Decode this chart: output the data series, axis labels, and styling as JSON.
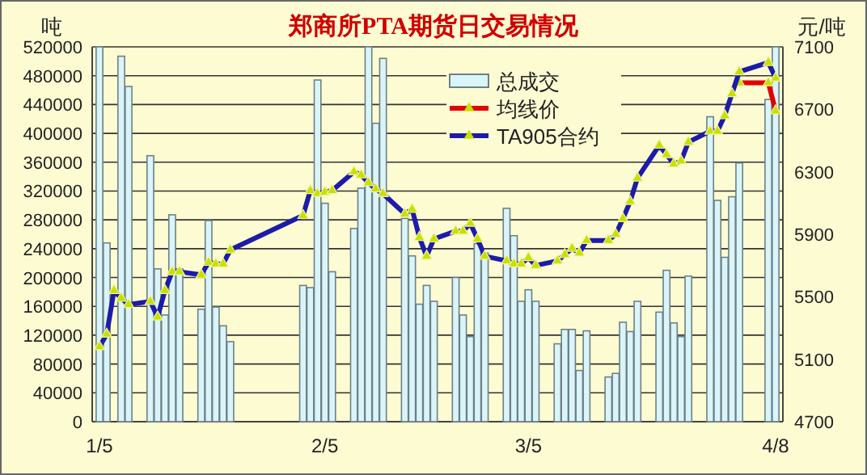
{
  "chart_data": {
    "type": "bar",
    "title": "郑商所PTA期货日交易情况",
    "ylabel": "吨",
    "y2label": "元/吨",
    "x": [
      "--01-05",
      "--01-06",
      "--01-07",
      "--01-08",
      "--01-09",
      "--01-12",
      "--01-13",
      "--01-14",
      "--01-15",
      "--01-16",
      "--01-19",
      "--01-20",
      "--01-21",
      "--01-22",
      "--01-23",
      "--02-02",
      "--02-03",
      "--02-04",
      "--02-05",
      "--02-06",
      "--02-09",
      "--02-10",
      "--02-11",
      "--02-12",
      "--02-13",
      "--02-16",
      "--02-17",
      "--02-18",
      "--02-19",
      "--02-20",
      "--02-23",
      "--02-24",
      "--02-25",
      "--02-26",
      "--02-27",
      "--03-02",
      "--03-03",
      "--03-04",
      "--03-05",
      "--03-06",
      "--03-09",
      "--03-10",
      "--03-11",
      "--03-12",
      "--03-13",
      "--03-16",
      "--03-17",
      "--03-18",
      "--03-19",
      "--03-20",
      "--03-23",
      "--03-24",
      "--03-25",
      "--03-26",
      "--03-27",
      "--03-30",
      "--03-31",
      "--04-01",
      "--04-02",
      "--04-03",
      "--04-07",
      "--04-08"
    ],
    "series": [
      {
        "name": "总成交",
        "color": "#d9f5fa",
        "values": [
          520000,
          248000,
          null,
          507000,
          465000,
          369000,
          212000,
          148000,
          287000,
          212000,
          156000,
          279000,
          159000,
          133000,
          111000,
          189000,
          186000,
          474000,
          303000,
          208000,
          268000,
          324000,
          520000,
          414000,
          504000,
          282000,
          230000,
          163000,
          189000,
          167000,
          200000,
          148000,
          118000,
          247000,
          234000,
          296000,
          258000,
          167000,
          183000,
          167000,
          108000,
          128000,
          128000,
          71000,
          126000,
          62000,
          67000,
          138000,
          125000,
          167000,
          152000,
          210000,
          137000,
          118000,
          202000,
          423000,
          307000,
          228000,
          312000,
          359000,
          447000,
          520000
        ]
      },
      {
        "name": "均线价",
        "type": "line",
        "axis": "y2",
        "color": "#e00000",
        "values": [
          null,
          null,
          null,
          null,
          null,
          null,
          null,
          null,
          null,
          null,
          null,
          null,
          null,
          null,
          null,
          null,
          null,
          null,
          null,
          null,
          null,
          null,
          null,
          null,
          null,
          null,
          null,
          null,
          null,
          null,
          null,
          null,
          null,
          null,
          null,
          null,
          null,
          null,
          null,
          null,
          null,
          null,
          null,
          null,
          null,
          null,
          null,
          null,
          null,
          null,
          null,
          null,
          null,
          null,
          null,
          null,
          null,
          null,
          null,
          6870,
          6870,
          6690
        ]
      },
      {
        "name": "TA905合约",
        "type": "line",
        "axis": "y2",
        "color": "#1c1ca8",
        "values": [
          5180,
          5260,
          5540,
          5490,
          5450,
          5470,
          5370,
          5540,
          5660,
          5660,
          5640,
          5720,
          5710,
          5710,
          5800,
          6020,
          6180,
          6160,
          6170,
          6180,
          6300,
          6280,
          6230,
          6190,
          6160,
          6030,
          6060,
          5880,
          5760,
          5870,
          5920,
          5920,
          5970,
          5870,
          5760,
          5730,
          5710,
          5710,
          5750,
          5700,
          5730,
          5770,
          5810,
          5780,
          5860,
          5860,
          5900,
          6000,
          6110,
          6260,
          6470,
          6410,
          6350,
          6370,
          6490,
          6560,
          6560,
          6660,
          6800,
          6940,
          7000,
          6900
        ]
      }
    ],
    "xlim": [
      "--01-04",
      "--04-09"
    ],
    "xticks": [
      {
        "value": "--01-05",
        "label": "1/5"
      },
      {
        "value": "--02-05",
        "label": "2/5"
      },
      {
        "value": "--03-05",
        "label": "3/5"
      },
      {
        "value": "--04-08",
        "label": "4/8"
      }
    ],
    "ylim": [
      0,
      520000
    ],
    "yticks": [
      0,
      40000,
      80000,
      120000,
      160000,
      200000,
      240000,
      280000,
      320000,
      360000,
      400000,
      440000,
      480000,
      520000
    ],
    "y2lim": [
      4700,
      7100
    ],
    "y2ticks": [
      4700,
      5100,
      5500,
      5900,
      6300,
      6700,
      7100
    ],
    "grid": "y",
    "legend": "top right",
    "marker": "triangle"
  }
}
